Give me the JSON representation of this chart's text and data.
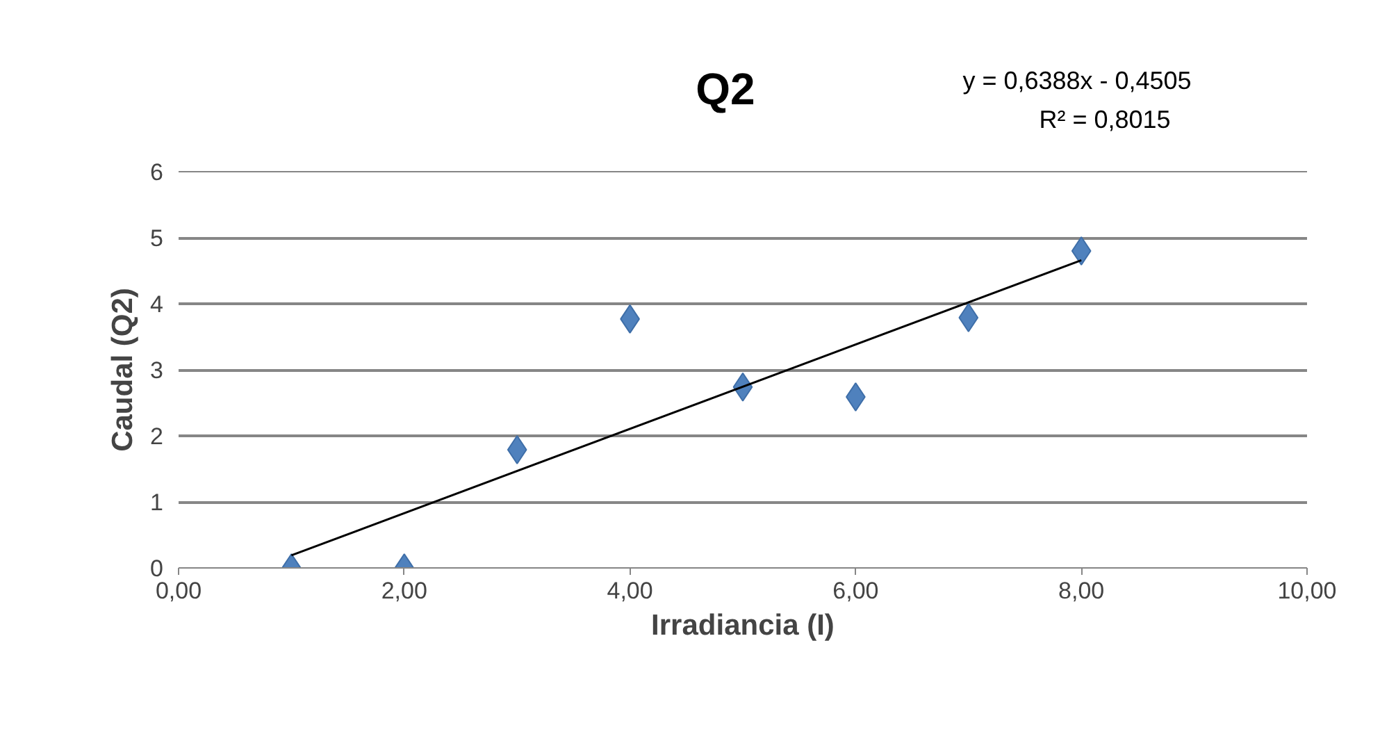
{
  "chart_data": {
    "type": "scatter",
    "title": "Q2",
    "xlabel": "Irradiancia (I)",
    "ylabel": "Caudal (Q2)",
    "annotations": [
      "y = 0,6388x - 0,4505",
      "R² = 0,8015"
    ],
    "x": [
      1,
      2,
      3,
      4,
      5,
      6,
      7,
      8
    ],
    "series": [
      {
        "type": "scatter",
        "color": "#4f81bd",
        "marker": "diamond",
        "values": [
          0,
          0,
          1.79,
          3.77,
          2.74,
          2.59,
          3.79,
          4.8
        ]
      },
      {
        "type": "line",
        "color": "#000000",
        "x": [
          1,
          8
        ],
        "values": [
          0.19,
          4.66
        ],
        "marker": "none",
        "line_style": "solid"
      }
    ],
    "xlim": [
      0,
      10
    ],
    "ylim": [
      0,
      6
    ],
    "xticks": [
      {
        "value": 0,
        "label": "0,00"
      },
      {
        "value": 2,
        "label": "2,00"
      },
      {
        "value": 4,
        "label": "4,00"
      },
      {
        "value": 6,
        "label": "6,00"
      },
      {
        "value": 8,
        "label": "8,00"
      },
      {
        "value": 10,
        "label": "10,00"
      }
    ],
    "yticks": [
      0,
      1,
      2,
      3,
      4,
      5,
      6
    ],
    "grid": "y"
  }
}
